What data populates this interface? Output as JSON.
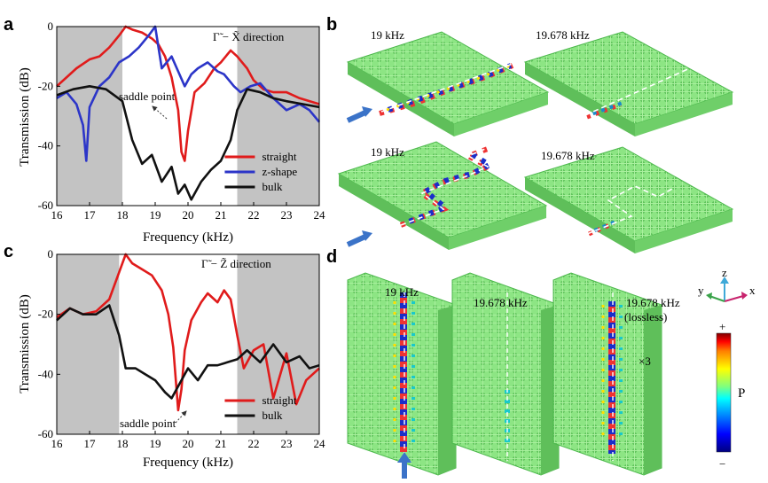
{
  "panels": {
    "a": "a",
    "b": "b",
    "c": "c",
    "d": "d"
  },
  "chart_data": [
    {
      "type": "line",
      "panel": "a",
      "title": "Γ̃ − X̃  direction",
      "xlabel": "Frequency (kHz)",
      "ylabel": "Transmission (dB)",
      "xlim": [
        16,
        24
      ],
      "ylim": [
        -60,
        0
      ],
      "xticks": [
        16,
        17,
        18,
        19,
        20,
        21,
        22,
        23,
        24
      ],
      "yticks": [
        0,
        -20,
        -40,
        -60
      ],
      "shaded_ranges": [
        [
          16,
          18
        ],
        [
          21.5,
          24
        ]
      ],
      "annotation": "saddle point",
      "legend": [
        "straight",
        "z-shape",
        "bulk"
      ],
      "series": [
        {
          "name": "straight",
          "color": "#e01b1b",
          "x": [
            16,
            16.3,
            16.6,
            17,
            17.3,
            17.6,
            17.9,
            18.1,
            18.3,
            18.6,
            18.9,
            19.1,
            19.3,
            19.5,
            19.7,
            19.8,
            19.9,
            20.0,
            20.2,
            20.5,
            20.8,
            21.0,
            21.3,
            21.5,
            21.8,
            22.0,
            22.3,
            22.6,
            23.0,
            23.4,
            23.7,
            24
          ],
          "values": [
            -20,
            -17,
            -14,
            -11,
            -10,
            -7,
            -3,
            0,
            -1,
            -2,
            -4,
            -6,
            -10,
            -17,
            -28,
            -42,
            -45,
            -35,
            -22,
            -19,
            -14,
            -12,
            -8,
            -10,
            -14,
            -18,
            -21,
            -22,
            -22,
            -24,
            -25,
            -26
          ]
        },
        {
          "name": "z-shape",
          "color": "#2c35c8",
          "x": [
            16,
            16.3,
            16.6,
            16.8,
            16.9,
            17.0,
            17.3,
            17.6,
            17.9,
            18.2,
            18.5,
            18.8,
            19.0,
            19.2,
            19.5,
            19.7,
            19.9,
            20.1,
            20.3,
            20.6,
            20.9,
            21.1,
            21.4,
            21.6,
            21.9,
            22.2,
            22.6,
            23.0,
            23.4,
            23.7,
            24
          ],
          "values": [
            -24,
            -22,
            -26,
            -33,
            -45,
            -27,
            -20,
            -17,
            -12,
            -10,
            -7,
            -3,
            0,
            -14,
            -10,
            -15,
            -20,
            -16,
            -14,
            -12,
            -15,
            -16,
            -20,
            -22,
            -20,
            -19,
            -24,
            -28,
            -26,
            -28,
            -32
          ]
        },
        {
          "name": "bulk",
          "color": "#111111",
          "x": [
            16,
            16.5,
            17,
            17.5,
            18.0,
            18.3,
            18.6,
            18.9,
            19.2,
            19.5,
            19.7,
            19.9,
            20.1,
            20.4,
            20.7,
            21.0,
            21.3,
            21.5,
            21.8,
            22.2,
            22.6,
            23.0,
            23.5,
            24
          ],
          "values": [
            -23,
            -21,
            -20,
            -21,
            -25,
            -38,
            -46,
            -43,
            -52,
            -47,
            -56,
            -53,
            -58,
            -52,
            -48,
            -45,
            -38,
            -28,
            -21,
            -22,
            -24,
            -25,
            -26,
            -27
          ]
        }
      ]
    },
    {
      "type": "line",
      "panel": "c",
      "title": "Γ̃ − Z̃    direction",
      "xlabel": "Frequency (kHz)",
      "ylabel": "Transmission (dB)",
      "xlim": [
        16,
        24
      ],
      "ylim": [
        -60,
        0
      ],
      "xticks": [
        16,
        17,
        18,
        19,
        20,
        21,
        22,
        23,
        24
      ],
      "yticks": [
        0,
        -20,
        -40,
        -60
      ],
      "shaded_ranges": [
        [
          16,
          17.9
        ],
        [
          21.5,
          24
        ]
      ],
      "annotation": "saddle point",
      "legend": [
        "straight",
        "bulk"
      ],
      "series": [
        {
          "name": "straight",
          "color": "#e01b1b",
          "x": [
            16,
            16.4,
            16.8,
            17.2,
            17.6,
            17.9,
            18.1,
            18.3,
            18.6,
            18.9,
            19.2,
            19.4,
            19.55,
            19.7,
            19.8,
            19.9,
            20.1,
            20.4,
            20.6,
            20.9,
            21.1,
            21.3,
            21.5,
            21.7,
            22.0,
            22.3,
            22.6,
            23.0,
            23.3,
            23.6,
            24
          ],
          "values": [
            -21,
            -18,
            -20,
            -19,
            -15,
            -6,
            0,
            -3,
            -5,
            -7,
            -12,
            -20,
            -31,
            -52,
            -45,
            -32,
            -22,
            -16,
            -13,
            -16,
            -12,
            -15,
            -27,
            -38,
            -32,
            -30,
            -48,
            -33,
            -50,
            -42,
            -38
          ]
        },
        {
          "name": "bulk",
          "color": "#111111",
          "x": [
            16,
            16.4,
            16.8,
            17.2,
            17.6,
            17.9,
            18.1,
            18.4,
            18.7,
            19.0,
            19.3,
            19.5,
            19.7,
            20.0,
            20.3,
            20.6,
            20.9,
            21.2,
            21.5,
            21.8,
            22.2,
            22.6,
            23.0,
            23.4,
            23.7,
            24
          ],
          "values": [
            -22,
            -18,
            -20,
            -20,
            -17,
            -27,
            -38,
            -38,
            -40,
            -42,
            -46,
            -48,
            -44,
            -38,
            -42,
            -37,
            -37,
            -36,
            -35,
            -32,
            -36,
            -30,
            -36,
            -34,
            -38,
            -37
          ]
        }
      ]
    }
  ],
  "simulations": {
    "b_labels": [
      "19 kHz",
      "19.678 kHz",
      "19 kHz",
      "19.678 kHz"
    ],
    "d_labels": [
      "19 kHz",
      "19.678 kHz",
      "19.678 kHz"
    ],
    "d_lossless": "(lossless)",
    "d_multiplier": "×3",
    "axes": {
      "z": "z",
      "y": "y",
      "x": "x"
    },
    "colorbar": {
      "plus": "+",
      "minus": "−",
      "label": "P",
      "colors": [
        "#00007f",
        "#0000ff",
        "#007fff",
        "#00ffff",
        "#7fff7f",
        "#ffff00",
        "#ff7f00",
        "#ff0000",
        "#7f0000"
      ]
    },
    "colors": {
      "lattice": "#7fe07a",
      "lattice_dark": "#4cb84c",
      "arrow": "#3b73c8"
    }
  }
}
